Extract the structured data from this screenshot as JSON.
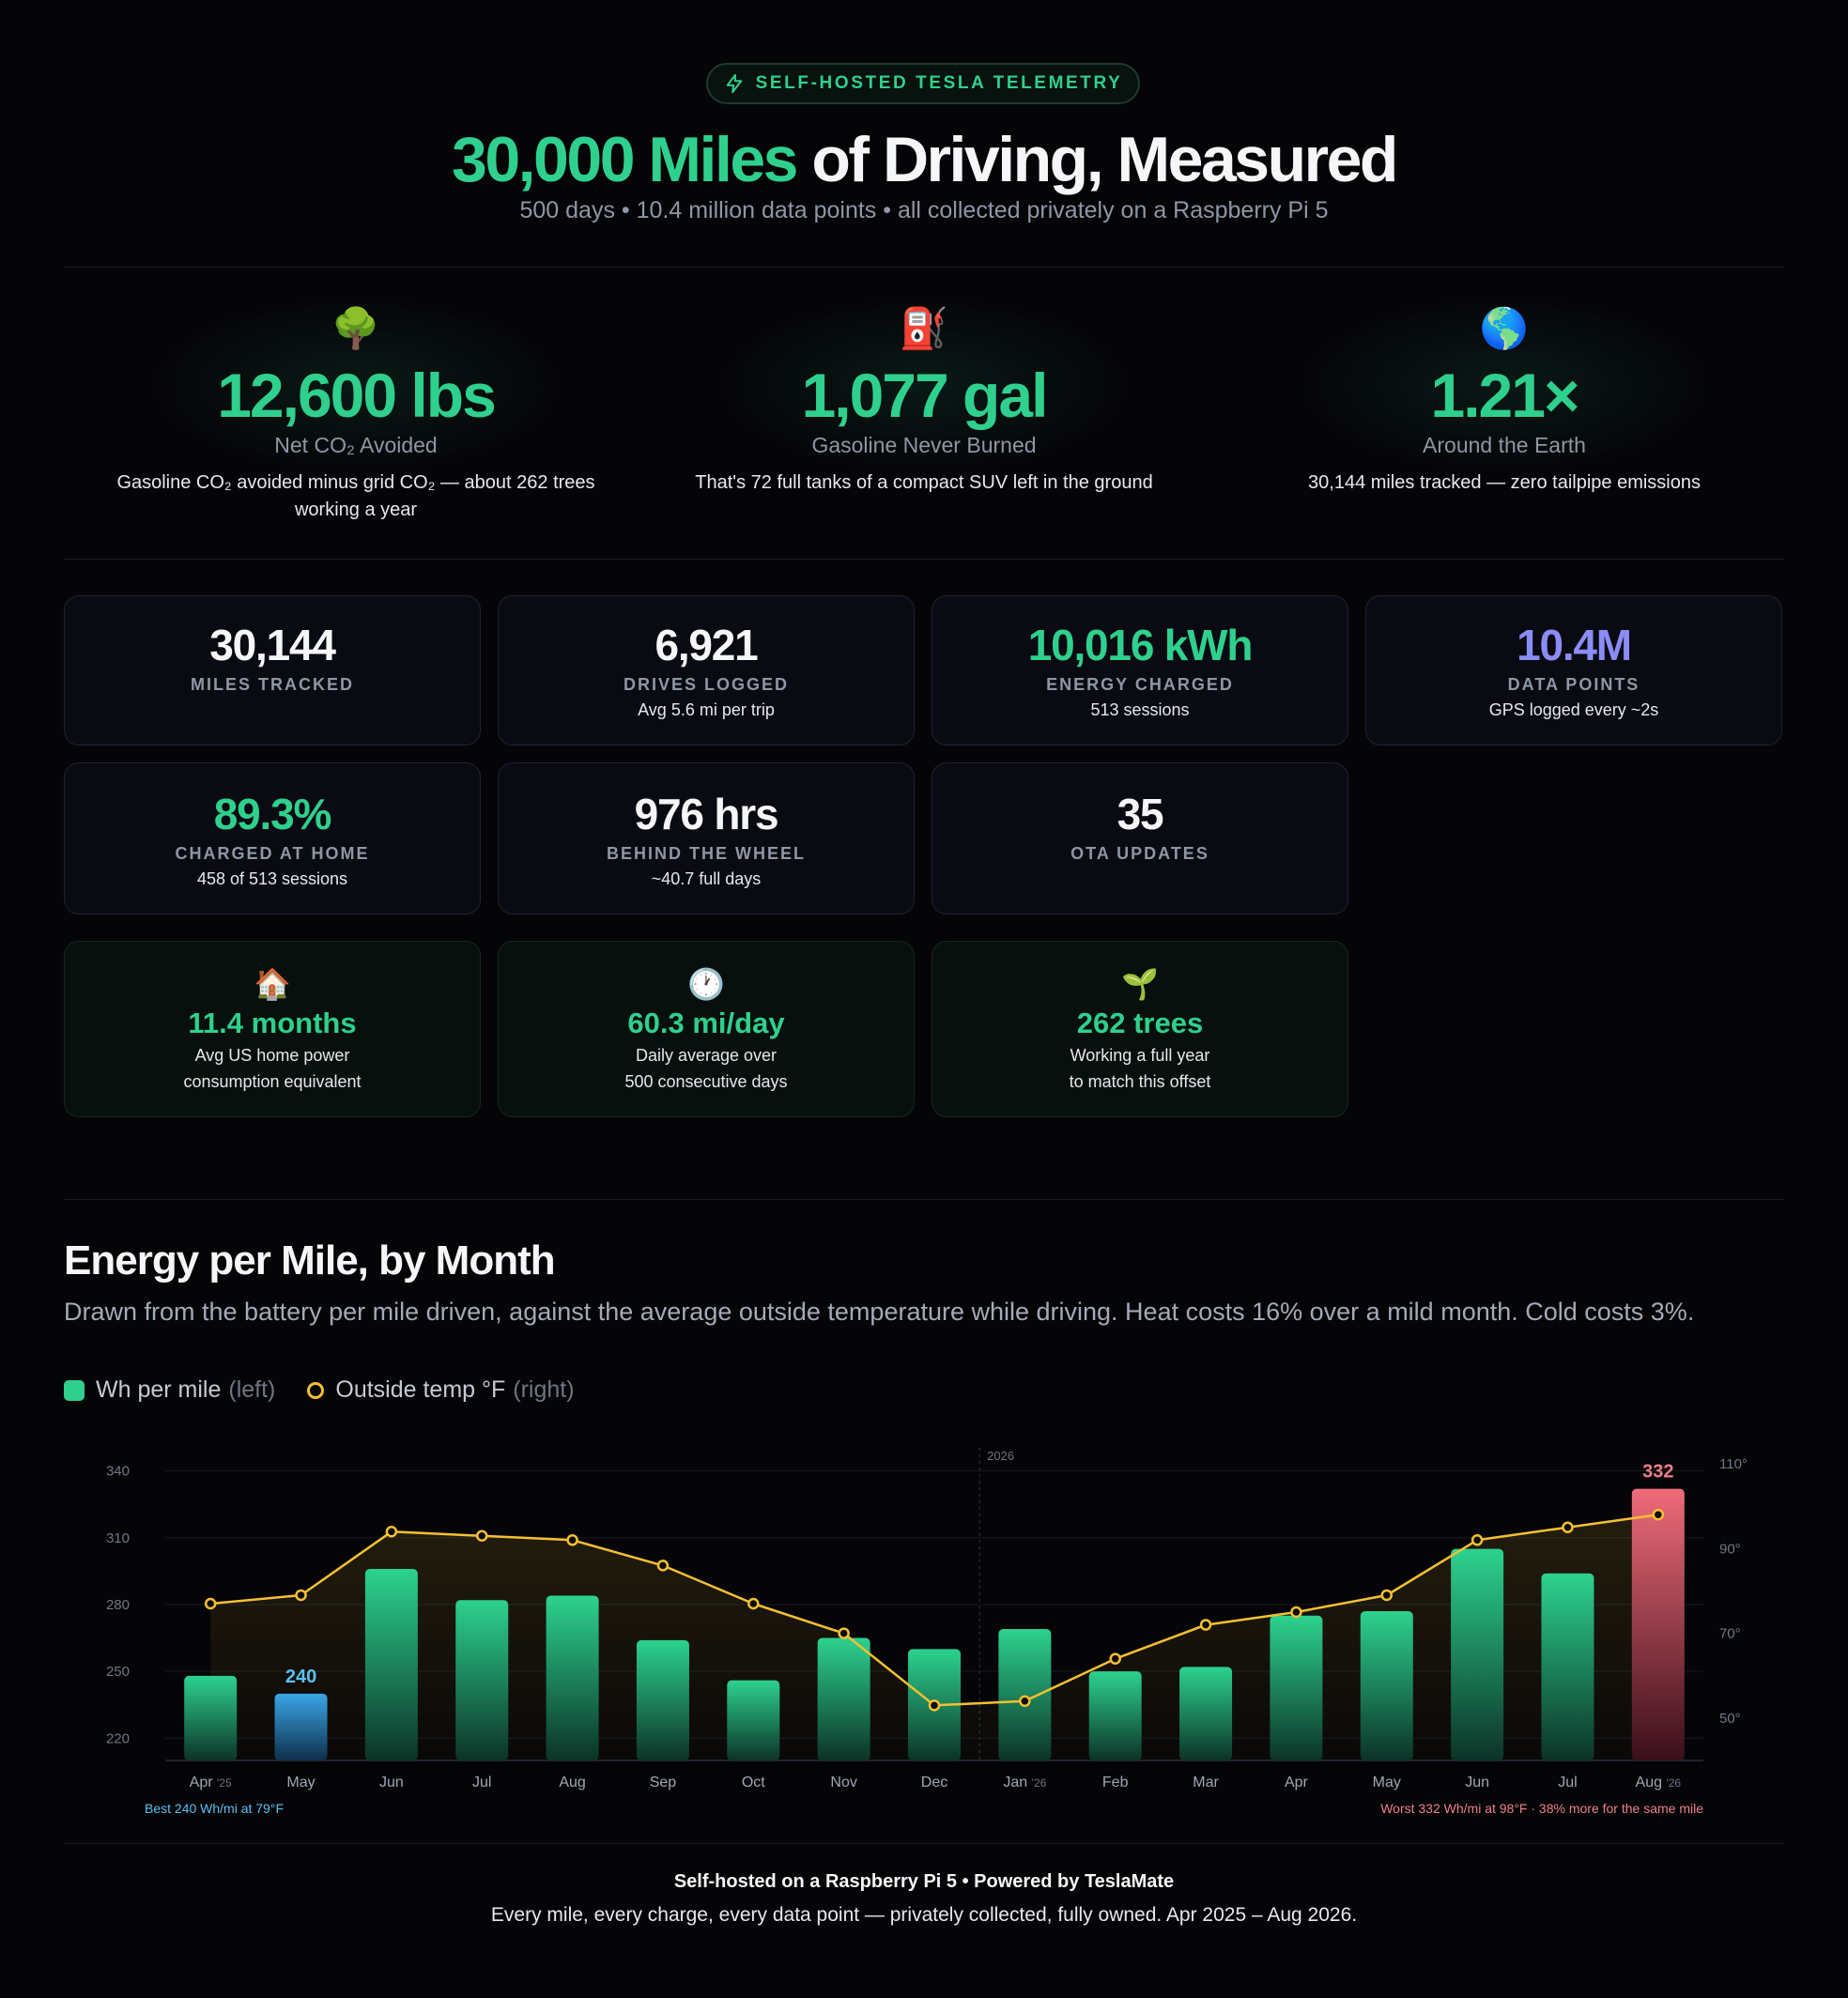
{
  "header": {
    "badge": "SELF-HOSTED TESLA TELEMETRY",
    "title_highlight": "30,000 Miles",
    "title_rest": " of Driving, Measured",
    "subtitle": "500 days • 10.4 million data points • all collected privately on a Raspberry Pi 5"
  },
  "hero": [
    {
      "emoji": "🌳",
      "value": "12,600 lbs",
      "label": "Net CO₂ Avoided",
      "desc": "Gasoline CO₂ avoided minus grid CO₂ — about 262 trees working a year"
    },
    {
      "emoji": "⛽",
      "value": "1,077 gal",
      "label": "Gasoline Never Burned",
      "desc": "That's 72 full tanks of a compact SUV left in the ground"
    },
    {
      "emoji": "🌎",
      "value": "1.21×",
      "label": "Around the Earth",
      "desc": "30,144 miles tracked — zero tailpipe emissions"
    }
  ],
  "stats": [
    {
      "value": "30,144",
      "label": "MILES TRACKED",
      "sub": "",
      "color": "#f5f6f8"
    },
    {
      "value": "6,921",
      "label": "DRIVES LOGGED",
      "sub": "Avg 5.6 mi per trip",
      "color": "#f5f6f8"
    },
    {
      "value": "10,016 kWh",
      "label": "ENERGY CHARGED",
      "sub": "513 sessions",
      "color": "#2fd08d"
    },
    {
      "value": "10.4M",
      "label": "DATA POINTS",
      "sub": "GPS logged every ~2s",
      "color": "#8b8cf5"
    },
    {
      "value": "89.3%",
      "label": "CHARGED AT HOME",
      "sub": "458 of 513 sessions",
      "color": "#2fd08d"
    },
    {
      "value": "976 hrs",
      "label": "BEHIND THE WHEEL",
      "sub": "~40.7 full days",
      "color": "#f5f6f8"
    },
    {
      "value": "35",
      "label": "OTA UPDATES",
      "sub": "",
      "color": "#f5f6f8"
    }
  ],
  "equivalents": [
    {
      "emoji": "🏠",
      "value": "11.4 months",
      "line1": "Avg US home power",
      "line2": "consumption equivalent"
    },
    {
      "emoji": "🕐",
      "value": "60.3 mi/day",
      "line1": "Daily average over",
      "line2": "500 consecutive days"
    },
    {
      "emoji": "🌱",
      "value": "262 trees",
      "line1": "Working a full year",
      "line2": "to match this offset"
    }
  ],
  "section": {
    "title": "Energy per Mile, by Month",
    "desc": "Drawn from the battery per mile driven, against the average outside temperature while driving. Heat costs 16% over a mild month. Cold costs 3%.",
    "legend_bar": "Wh per mile",
    "legend_bar_note": "(left)",
    "legend_line": "Outside temp °F",
    "legend_line_note": "(right)"
  },
  "chart_data": {
    "type": "bar",
    "categories": [
      "Apr '25",
      "May",
      "Jun",
      "Jul",
      "Aug",
      "Sep",
      "Oct",
      "Nov",
      "Dec",
      "Jan '26",
      "Feb",
      "Mar",
      "Apr",
      "May",
      "Jun",
      "Jul",
      "Aug '26"
    ],
    "series": [
      {
        "name": "Wh per mile",
        "axis": "left",
        "type": "bar",
        "values": [
          248,
          240,
          296,
          282,
          284,
          264,
          246,
          265,
          260,
          269,
          250,
          252,
          275,
          277,
          305,
          294,
          332
        ]
      },
      {
        "name": "Outside temp °F",
        "axis": "right",
        "type": "line",
        "values": [
          77,
          79,
          94,
          93,
          92,
          86,
          77,
          70,
          53,
          54,
          64,
          72,
          75,
          79,
          92,
          95,
          98
        ]
      }
    ],
    "y_left": {
      "ticks": [
        220,
        250,
        280,
        310,
        340
      ],
      "range": [
        210,
        347
      ]
    },
    "y_right": {
      "ticks": [
        50,
        70,
        90,
        110
      ],
      "range": [
        40,
        112
      ],
      "tick_suffix": "°"
    },
    "divider_label": "2026",
    "highlight_best": {
      "index": 1,
      "label": "240",
      "color": "#3aa6e6"
    },
    "highlight_worst": {
      "index": 16,
      "label": "332",
      "color": "#ef6b7a"
    },
    "note_best": "Best 240 Wh/mi at 79°F",
    "note_worst": "Worst 332 Wh/mi at 98°F · 38% more for the same mile"
  },
  "footer": {
    "line1": "Self-hosted on a Raspberry Pi 5 • Powered by TeslaMate",
    "line2": "Every mile, every charge, every data point — privately collected, fully owned. Apr 2025 – Aug 2026."
  }
}
